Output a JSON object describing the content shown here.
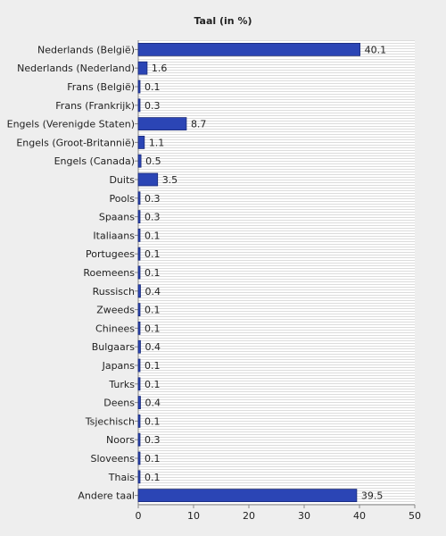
{
  "chart_data": {
    "type": "bar",
    "orientation": "horizontal",
    "title": "Taal (in %)",
    "categories": [
      "Nederlands (België)",
      "Nederlands (Nederland)",
      "Frans (België)",
      "Frans (Frankrijk)",
      "Engels (Verenigde Staten)",
      "Engels (Groot-Britannië)",
      "Engels (Canada)",
      "Duits",
      "Pools",
      "Spaans",
      "Italiaans",
      "Portugees",
      "Roemeens",
      "Russisch",
      "Zweeds",
      "Chinees",
      "Bulgaars",
      "Japans",
      "Turks",
      "Deens",
      "Tsjechisch",
      "Noors",
      "Sloveens",
      "Thais",
      "Andere taal"
    ],
    "values": [
      40.1,
      1.6,
      0.1,
      0.3,
      8.7,
      1.1,
      0.5,
      3.5,
      0.3,
      0.3,
      0.1,
      0.1,
      0.1,
      0.4,
      0.1,
      0.1,
      0.4,
      0.1,
      0.1,
      0.4,
      0.1,
      0.3,
      0.1,
      0.1,
      39.5
    ],
    "color": "#2b45b5",
    "xlim": [
      0,
      50
    ],
    "xticks": [
      0,
      10,
      20,
      30,
      40,
      50
    ]
  }
}
